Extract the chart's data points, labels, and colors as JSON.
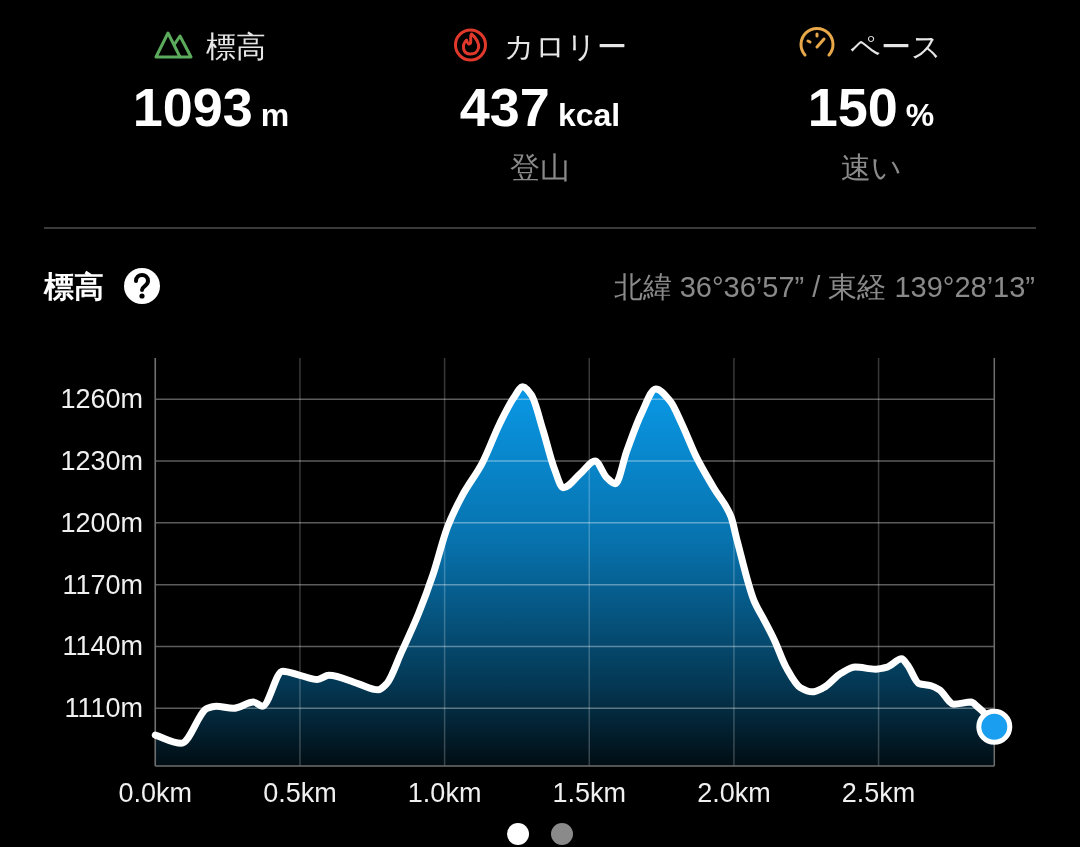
{
  "chart_data": [
    {
      "type": "other",
      "annotations": [
        "標高",
        "1093",
        "m",
        "カロリー",
        "437",
        "kcal",
        "登山",
        "ペース",
        "150",
        "%",
        "速い"
      ]
    },
    {
      "type": "area",
      "title": "標高",
      "subtitle": "北緯 36°36’57” / 東経 139°28’13”",
      "xlim": [
        0,
        2.9
      ],
      "ylim": [
        1082,
        1280
      ],
      "xticks": [
        {
          "value": 0,
          "label": "0.0km"
        },
        {
          "value": 0.5,
          "label": "0.5km"
        },
        {
          "value": 1,
          "label": "1.0km"
        },
        {
          "value": 1.5,
          "label": "1.5km"
        },
        {
          "value": 2,
          "label": "2.0km"
        },
        {
          "value": 2.5,
          "label": "2.5km"
        }
      ],
      "yticks": [
        {
          "value": 1110,
          "label": "1110m"
        },
        {
          "value": 1140,
          "label": "1140m"
        },
        {
          "value": 1170,
          "label": "1170m"
        },
        {
          "value": 1200,
          "label": "1200m"
        },
        {
          "value": 1230,
          "label": "1230m"
        },
        {
          "value": 1260,
          "label": "1260m"
        }
      ],
      "grid": true,
      "line_style": "solid",
      "series": [
        {
          "color": "#0a9ff0",
          "x": [
            0,
            0.09,
            0.18,
            0.21,
            0.27,
            0.34,
            0.37,
            0.44,
            0.5,
            0.56,
            0.6,
            0.7,
            0.77,
            0.8,
            0.85,
            0.91,
            0.96,
            1.01,
            1.06,
            1.13,
            1.19,
            1.24,
            1.27,
            1.3,
            1.34,
            1.38,
            1.41,
            1.47,
            1.52,
            1.56,
            1.59,
            1.63,
            1.68,
            1.73,
            1.78,
            1.82,
            1.87,
            1.93,
            1.99,
            2.01,
            2.07,
            2.1,
            2.14,
            2.18,
            2.23,
            2.27,
            2.31,
            2.37,
            2.42,
            2.49,
            2.53,
            2.58,
            2.6,
            2.64,
            2.68,
            2.71,
            2.76,
            2.82,
            2.84,
            2.87,
            2.9
          ],
          "values": [
            1097,
            1093,
            1110,
            1111,
            1110,
            1113,
            1111,
            1128,
            1126,
            1124,
            1126,
            1122,
            1119,
            1122,
            1137,
            1156,
            1175,
            1198,
            1213,
            1229,
            1248,
            1261,
            1266,
            1262,
            1245,
            1226,
            1217,
            1224,
            1230,
            1222,
            1219,
            1235,
            1253,
            1265,
            1259,
            1248,
            1232,
            1217,
            1203,
            1192,
            1162,
            1154,
            1143,
            1130,
            1120,
            1118,
            1120,
            1127,
            1130,
            1129,
            1130,
            1134,
            1131,
            1122,
            1121,
            1119,
            1112,
            1113,
            1111,
            1107,
            1101
          ]
        },
        {
          "type": "scatter",
          "color": "#1a9ff0",
          "x": [
            2.9
          ],
          "values": [
            1101
          ]
        }
      ]
    }
  ]
}
